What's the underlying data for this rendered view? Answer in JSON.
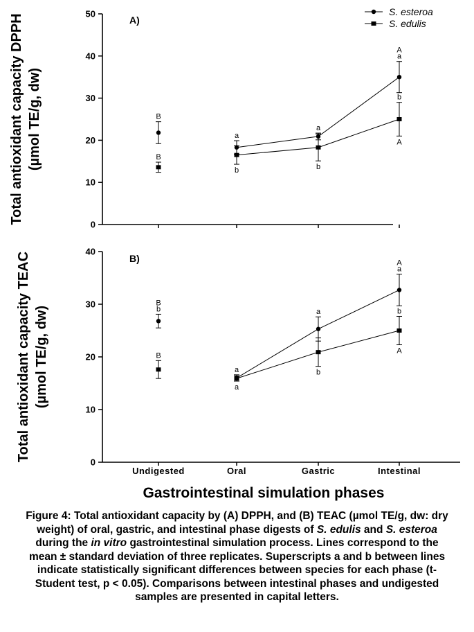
{
  "chart_data": [
    {
      "type": "line",
      "panel_label": "A)",
      "ylabel": [
        "Total antioxidant capacity DPPH",
        "(µmol TE/g, dw)"
      ],
      "ylim": [
        0,
        50
      ],
      "yticks": [
        "0",
        "10",
        "20",
        "30",
        "40",
        "50"
      ],
      "categories": [
        "Undigested",
        "Oral",
        "Gastric",
        "Intestinal"
      ],
      "series": [
        {
          "name": "S. esteroa",
          "marker": "circle",
          "values": [
            21.8,
            18.3,
            20.9,
            35.0
          ],
          "errors": [
            2.6,
            1.6,
            0.8,
            3.7
          ],
          "connected_from": 1
        },
        {
          "name": "S. edulis",
          "marker": "square",
          "values": [
            13.6,
            16.5,
            18.3,
            25.0
          ],
          "errors": [
            1.2,
            2.2,
            3.2,
            4.0
          ],
          "connected_from": 1
        }
      ],
      "letters": [
        {
          "series": 0,
          "category": 0,
          "text": "B",
          "pos": "above"
        },
        {
          "series": 1,
          "category": 0,
          "text": "B",
          "pos": "above"
        },
        {
          "series": 0,
          "category": 1,
          "text": "a",
          "pos": "above"
        },
        {
          "series": 1,
          "category": 1,
          "text": "b",
          "pos": "below"
        },
        {
          "series": 0,
          "category": 2,
          "text": "a",
          "pos": "above"
        },
        {
          "series": 1,
          "category": 2,
          "text": "b",
          "pos": "below"
        },
        {
          "series": 0,
          "category": 3,
          "text": "A",
          "pos": "above2"
        },
        {
          "series": 0,
          "category": 3,
          "text": "a",
          "pos": "above"
        },
        {
          "series": 1,
          "category": 3,
          "text": "b",
          "pos": "above"
        },
        {
          "series": 1,
          "category": 3,
          "text": "A",
          "pos": "below"
        }
      ]
    },
    {
      "type": "line",
      "panel_label": "B)",
      "ylabel": [
        "Total antioxidant capacity TEAC",
        "(µmol TE/g, dw)"
      ],
      "ylim": [
        0,
        40
      ],
      "yticks": [
        "0",
        "10",
        "20",
        "30",
        "40"
      ],
      "categories": [
        "Undigested",
        "Oral",
        "Gastric",
        "Intestinal"
      ],
      "series": [
        {
          "name": "S. esteroa",
          "marker": "circle",
          "values": [
            26.8,
            16.0,
            25.3,
            32.7
          ],
          "errors": [
            1.3,
            0.6,
            2.3,
            3.0
          ],
          "connected_from": 1
        },
        {
          "name": "S. edulis",
          "marker": "square",
          "values": [
            17.6,
            15.9,
            20.9,
            25.0
          ],
          "errors": [
            1.7,
            0.5,
            2.7,
            2.7
          ],
          "connected_from": 1
        }
      ],
      "letters": [
        {
          "series": 0,
          "category": 0,
          "text": "B",
          "pos": "above2"
        },
        {
          "series": 0,
          "category": 0,
          "text": "b",
          "pos": "above"
        },
        {
          "series": 1,
          "category": 0,
          "text": "B",
          "pos": "above"
        },
        {
          "series": 0,
          "category": 1,
          "text": "a",
          "pos": "above"
        },
        {
          "series": 1,
          "category": 1,
          "text": "a",
          "pos": "below"
        },
        {
          "series": 0,
          "category": 2,
          "text": "a",
          "pos": "above"
        },
        {
          "series": 1,
          "category": 2,
          "text": "b",
          "pos": "below"
        },
        {
          "series": 0,
          "category": 3,
          "text": "A",
          "pos": "above2"
        },
        {
          "series": 0,
          "category": 3,
          "text": "a",
          "pos": "above"
        },
        {
          "series": 1,
          "category": 3,
          "text": "b",
          "pos": "above"
        },
        {
          "series": 1,
          "category": 3,
          "text": "A",
          "pos": "below"
        }
      ]
    }
  ],
  "legend": {
    "placement": "top-right",
    "items": [
      "S. esteroa",
      "S. edulis"
    ]
  },
  "x_axis": {
    "categories": [
      "Undigested",
      "Oral",
      "Gastric",
      "Intestinal"
    ],
    "title": "Gastrointestinal simulation phases"
  },
  "caption": {
    "parts": [
      {
        "t": "Figure 4: Total antioxidant capacity by (A) DPPH, and (B) TEAC (µmol TE/g, dw: dry weight) of oral, gastric, and intestinal phase digests of ",
        "i": false
      },
      {
        "t": "S. edulis",
        "i": true
      },
      {
        "t": " and ",
        "i": false
      },
      {
        "t": "S. esteroa",
        "i": true
      },
      {
        "t": " during the ",
        "i": false
      },
      {
        "t": "in vitro",
        "i": true
      },
      {
        "t": " gastrointestinal simulation process. Lines correspond to the mean ± standard deviation of three replicates. Superscripts a and b between lines indicate statistically significant differences between species for each phase (t-Student test, p < 0.05). Comparisons between intestinal phases and undigested samples are presented in capital letters.",
        "i": false
      }
    ]
  }
}
